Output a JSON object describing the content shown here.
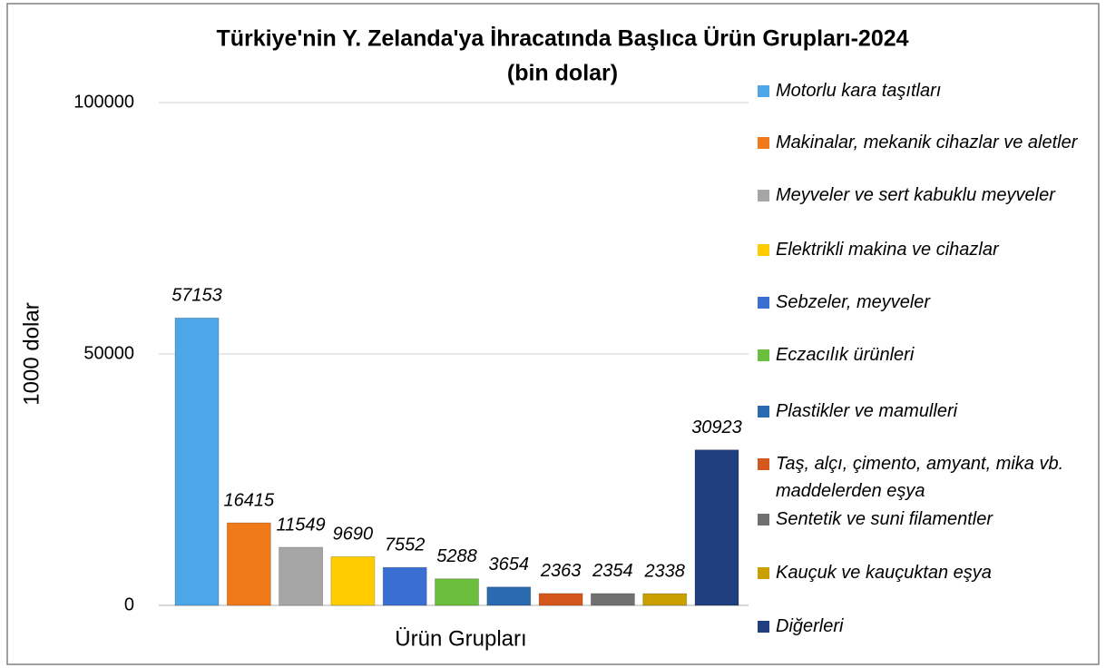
{
  "chart_data": {
    "type": "bar",
    "title": "Türkiye'nin Y. Zelanda'ya İhracatında Başlıca Ürün Grupları-2024",
    "subtitle": "(bin dolar)",
    "x_label": "Ürün Grupları",
    "y_label": "1000 dolar",
    "categories": [
      null
    ],
    "series": [
      {
        "name": "Motorlu kara taşıtları",
        "color": "#4da6e8",
        "values": [
          57153
        ]
      },
      {
        "name": "Makinalar, mekanik cihazlar ve aletler",
        "color": "#f07a1a",
        "values": [
          16415
        ]
      },
      {
        "name": "Meyveler ve sert kabuklu meyveler",
        "color": "#a6a6a6",
        "values": [
          11549
        ]
      },
      {
        "name": "Elektrikli makina ve cihazlar",
        "color": "#ffcc00",
        "values": [
          9690
        ]
      },
      {
        "name": "Sebzeler, meyveler",
        "color": "#3a6fd1",
        "values": [
          7552
        ]
      },
      {
        "name": "Eczacılık ürünleri",
        "color": "#6cbf3c",
        "values": [
          5288
        ]
      },
      {
        "name": "Plastikler ve mamulleri",
        "color": "#2a6ab0",
        "values": [
          3654
        ]
      },
      {
        "name": "Taş, alçı, çimento, amyant, mika vb. maddelerden eşya",
        "color": "#d4581b",
        "values": [
          2363
        ]
      },
      {
        "name": "Sentetik ve suni filamentler",
        "color": "#707070",
        "values": [
          2354
        ]
      },
      {
        "name": "Kauçuk ve kauçuktan eşya",
        "color": "#c9a000",
        "values": [
          2338
        ]
      },
      {
        "name": "Diğerleri",
        "color": "#1f3f80",
        "values": [
          30923
        ]
      }
    ],
    "ylim": [
      0,
      100000
    ],
    "yticks": [
      0,
      50000,
      100000
    ],
    "grid": true,
    "legend": "right"
  }
}
